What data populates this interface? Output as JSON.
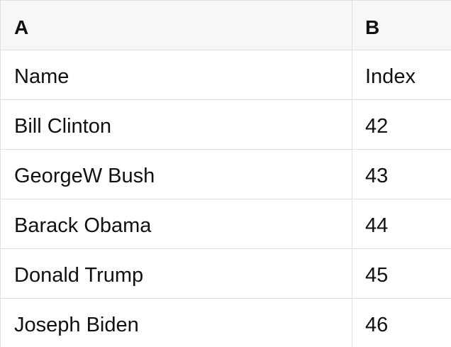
{
  "sheet": {
    "column_headers": [
      "A",
      "B"
    ],
    "rows": [
      [
        "Name",
        "Index"
      ],
      [
        "Bill Clinton",
        "42"
      ],
      [
        "GeorgeW Bush",
        "43"
      ],
      [
        "Barack Obama",
        "44"
      ],
      [
        "Donald Trump",
        "45"
      ],
      [
        "Joseph Biden",
        "46"
      ]
    ],
    "colors": {
      "header_background": "#f7f7f7",
      "row_background": "#ffffff",
      "border": "#e0e0e0",
      "text": "#111111"
    }
  }
}
